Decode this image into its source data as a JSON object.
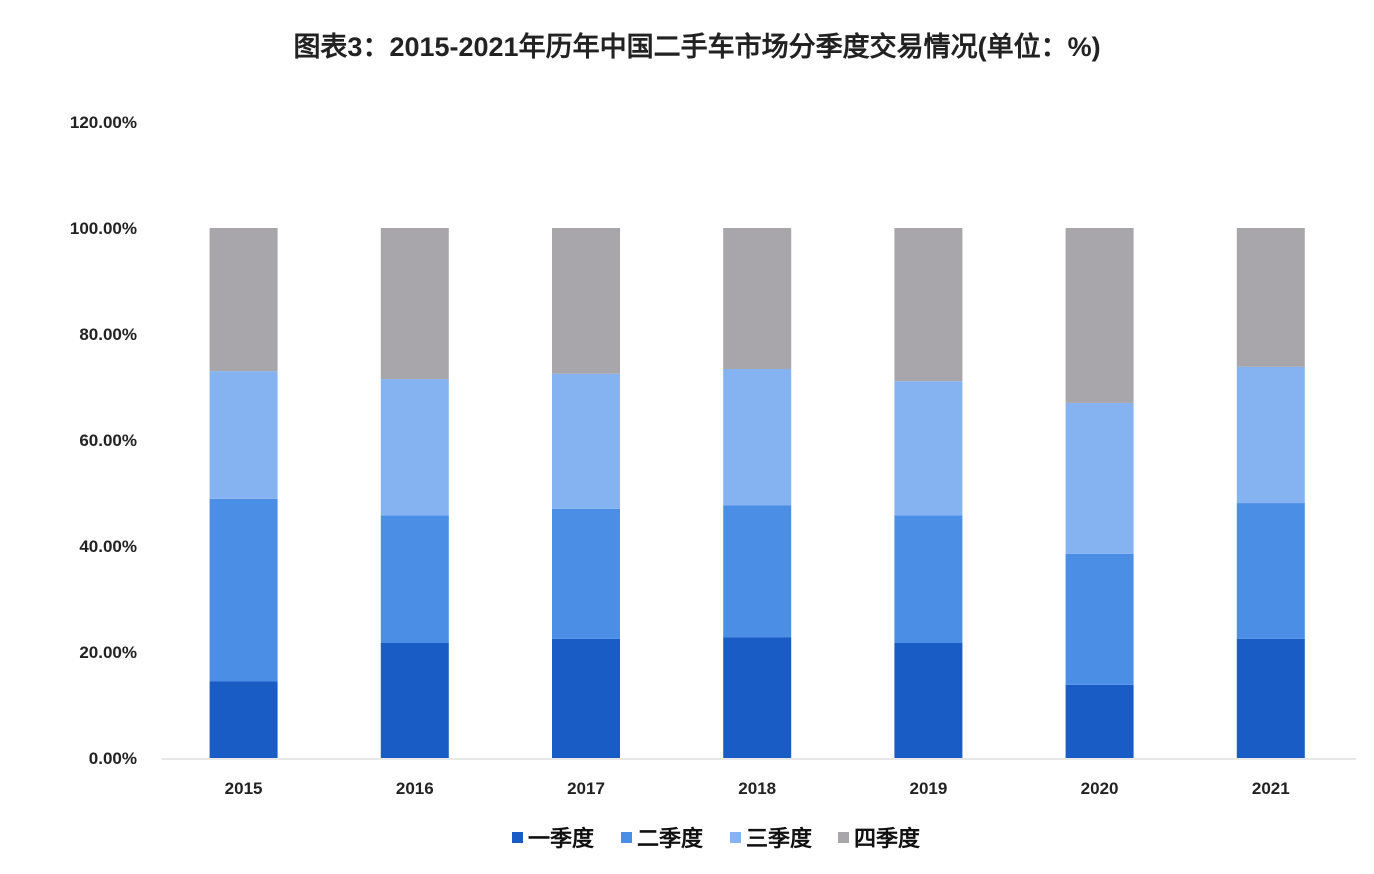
{
  "chart_data": {
    "type": "bar",
    "stacked": true,
    "title": "图表3：2015-2021年历年中国二手车市场分季度交易情况(单位：%)",
    "xlabel": "",
    "ylabel": "",
    "categories": [
      "2015",
      "2016",
      "2017",
      "2018",
      "2019",
      "2020",
      "2021"
    ],
    "ylim": [
      0,
      120
    ],
    "yticks": [
      "0.00%",
      "20.00%",
      "40.00%",
      "60.00%",
      "80.00%",
      "100.00%",
      "120.00%"
    ],
    "grid": false,
    "legend_position": "bottom",
    "series": [
      {
        "name": "一季度",
        "color": "#1a5cc6",
        "values": [
          14.5,
          21.7,
          22.5,
          22.8,
          21.7,
          13.8,
          22.5
        ]
      },
      {
        "name": "二季度",
        "color": "#4a8ee6",
        "values": [
          34.4,
          24.1,
          24.5,
          24.9,
          24.1,
          24.7,
          25.6
        ]
      },
      {
        "name": "三季度",
        "color": "#85b3f1",
        "values": [
          24.1,
          25.7,
          25.5,
          25.7,
          25.3,
          28.5,
          25.7
        ]
      },
      {
        "name": "四季度",
        "color": "#a8a6aa",
        "values": [
          27.0,
          28.5,
          27.5,
          26.6,
          28.9,
          33.0,
          26.2
        ]
      }
    ]
  }
}
